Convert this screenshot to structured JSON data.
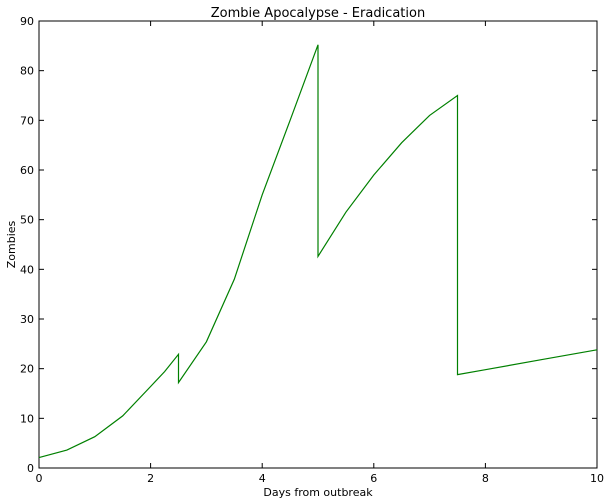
{
  "chart_data": {
    "type": "line",
    "title": "Zombie Apocalypse - Eradication",
    "xlabel": "Days from outbreak",
    "ylabel": "Zombies",
    "xlim": [
      0,
      10
    ],
    "ylim": [
      0,
      90
    ],
    "xticks": [
      0,
      2,
      4,
      6,
      8,
      10
    ],
    "yticks": [
      0,
      10,
      20,
      30,
      40,
      50,
      60,
      70,
      80,
      90
    ],
    "grid": false,
    "legend": "none",
    "series": [
      {
        "color": "#008000",
        "x": [
          0,
          0.5,
          1.0,
          1.5,
          2.0,
          2.25,
          2.5,
          2.5,
          3.0,
          3.5,
          4.0,
          4.5,
          5.0,
          5.0,
          5.5,
          6.0,
          6.5,
          7.0,
          7.5,
          7.5,
          8.0,
          9.0,
          10.0
        ],
        "y": [
          2.1,
          3.6,
          6.3,
          10.5,
          16.4,
          19.4,
          22.9,
          17.2,
          25.4,
          38.0,
          55.0,
          70.0,
          85.2,
          42.6,
          51.5,
          59.0,
          65.5,
          71.0,
          75.0,
          18.8,
          19.8,
          21.8,
          23.8
        ]
      }
    ]
  }
}
